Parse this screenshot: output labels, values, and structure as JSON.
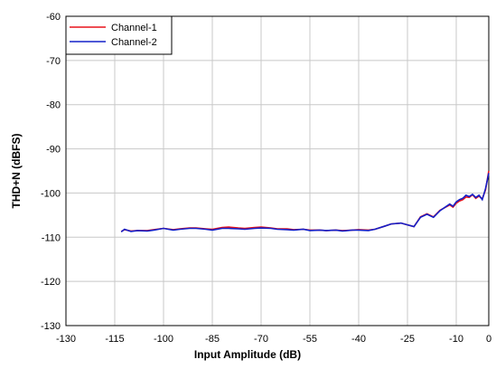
{
  "chart_data": {
    "type": "line",
    "xlabel": "Input Amplitude (dB)",
    "ylabel": "THD+N (dBFS)",
    "x": [
      -113,
      -112,
      -110,
      -108,
      -105,
      -103,
      -100,
      -97,
      -95,
      -92,
      -90,
      -87,
      -85,
      -82,
      -80,
      -77,
      -75,
      -72,
      -70,
      -67,
      -65,
      -62,
      -60,
      -57,
      -55,
      -52,
      -50,
      -47,
      -45,
      -42,
      -40,
      -37,
      -35,
      -32,
      -30,
      -27,
      -25,
      -23,
      -21,
      -19,
      -17,
      -15,
      -13,
      -12,
      -11,
      -10,
      -9,
      -8,
      -7,
      -6,
      -5,
      -4,
      -3,
      -2,
      -1,
      0
    ],
    "series": [
      {
        "name": "Channel-1",
        "color": "#e8131b",
        "values": [
          -108.7,
          -108.3,
          -108.6,
          -108.5,
          -108.5,
          -108.3,
          -108.0,
          -108.3,
          -108.1,
          -107.9,
          -107.9,
          -108.1,
          -108.2,
          -107.8,
          -107.7,
          -107.9,
          -108.0,
          -107.8,
          -107.7,
          -107.9,
          -108.1,
          -108.1,
          -108.3,
          -108.2,
          -108.4,
          -108.4,
          -108.5,
          -108.4,
          -108.5,
          -108.4,
          -108.3,
          -108.4,
          -108.2,
          -107.5,
          -107.0,
          -106.8,
          -107.2,
          -107.6,
          -105.4,
          -104.7,
          -105.4,
          -103.9,
          -103.1,
          -102.7,
          -103.2,
          -102.3,
          -101.8,
          -101.5,
          -100.9,
          -101.0,
          -100.4,
          -101.2,
          -100.7,
          -101.3,
          -99.3,
          -95.0
        ]
      },
      {
        "name": "Channel-2",
        "color": "#1420c8",
        "values": [
          -108.8,
          -108.2,
          -108.7,
          -108.5,
          -108.6,
          -108.4,
          -108.0,
          -108.4,
          -108.2,
          -108.0,
          -108.0,
          -108.2,
          -108.4,
          -108.0,
          -108.0,
          -108.1,
          -108.2,
          -108.0,
          -107.9,
          -108.0,
          -108.2,
          -108.3,
          -108.4,
          -108.2,
          -108.5,
          -108.4,
          -108.5,
          -108.4,
          -108.6,
          -108.4,
          -108.4,
          -108.5,
          -108.2,
          -107.5,
          -107.0,
          -106.8,
          -107.2,
          -107.6,
          -105.5,
          -104.8,
          -105.5,
          -104.0,
          -103.0,
          -102.5,
          -103.0,
          -102.0,
          -101.5,
          -101.2,
          -100.5,
          -100.8,
          -100.3,
          -101.0,
          -100.5,
          -101.5,
          -99.0,
          -95.5
        ]
      }
    ],
    "xlim": [
      -130,
      0
    ],
    "xticks": [
      -130,
      -115,
      -100,
      -85,
      -70,
      -55,
      -40,
      -25,
      -10,
      0
    ],
    "ylim": [
      -130,
      -60
    ],
    "yticks": [
      -130,
      -120,
      -110,
      -100,
      -90,
      -80,
      -70,
      -60
    ],
    "grid": true,
    "legend": "upper-left"
  }
}
